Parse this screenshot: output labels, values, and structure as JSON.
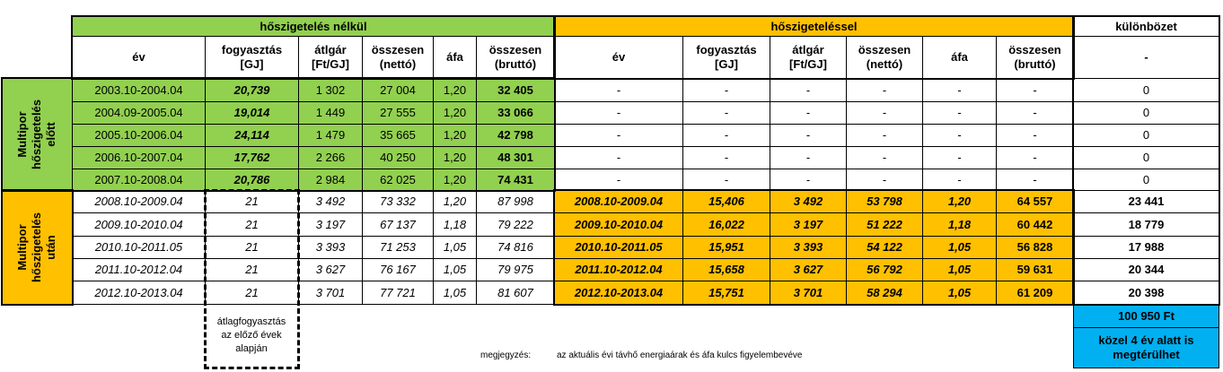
{
  "header": {
    "group_without": "hőszigetelés nélkül",
    "group_with": "hőszigeteléssel",
    "difference": "különbözet",
    "columns": [
      "év",
      "fogyasztás\n[GJ]",
      "átlgár\n[Ft/GJ]",
      "összesen\n(nettó)",
      "áfa",
      "összesen\n(bruttó)",
      "év",
      "fogyasztás\n[GJ]",
      "átlgár\n[Ft/GJ]",
      "összesen\n(nettó)",
      "áfa",
      "összesen\n(bruttó)",
      "-"
    ]
  },
  "groups": [
    {
      "label": "Multipor\nhőszigetelés előtt",
      "rows": [
        [
          "2003.10-2004.04",
          "20,739",
          "1 302",
          "27 004",
          "1,20",
          "32 405",
          "-",
          "-",
          "-",
          "-",
          "-",
          "-",
          "0"
        ],
        [
          "2004.09-2005.04",
          "19,014",
          "1 449",
          "27 555",
          "1,20",
          "33 066",
          "-",
          "-",
          "-",
          "-",
          "-",
          "-",
          "0"
        ],
        [
          "2005.10-2006.04",
          "24,114",
          "1 479",
          "35 665",
          "1,20",
          "42 798",
          "-",
          "-",
          "-",
          "-",
          "-",
          "-",
          "0"
        ],
        [
          "2006.10-2007.04",
          "17,762",
          "2 266",
          "40 250",
          "1,20",
          "48 301",
          "-",
          "-",
          "-",
          "-",
          "-",
          "-",
          "0"
        ],
        [
          "2007.10-2008.04",
          "20,786",
          "2 984",
          "62 025",
          "1,20",
          "74 431",
          "-",
          "-",
          "-",
          "-",
          "-",
          "-",
          "0"
        ]
      ]
    },
    {
      "label": "Multipor\nhőszigetelés után",
      "rows": [
        [
          "2008.10-2009.04",
          "21",
          "3 492",
          "73 332",
          "1,20",
          "87 998",
          "2008.10-2009.04",
          "15,406",
          "3 492",
          "53 798",
          "1,20",
          "64 557",
          "23 441"
        ],
        [
          "2009.10-2010.04",
          "21",
          "3 197",
          "67 137",
          "1,18",
          "79 222",
          "2009.10-2010.04",
          "16,022",
          "3 197",
          "51 222",
          "1,18",
          "60 442",
          "18 779"
        ],
        [
          "2010.10-2011.05",
          "21",
          "3 393",
          "71 253",
          "1,05",
          "74 816",
          "2010.10-2011.05",
          "15,951",
          "3 393",
          "54 122",
          "1,05",
          "56 828",
          "17 988"
        ],
        [
          "2011.10-2012.04",
          "21",
          "3 627",
          "76 167",
          "1,05",
          "79 975",
          "2011.10-2012.04",
          "15,658",
          "3 627",
          "56 792",
          "1,05",
          "59 631",
          "20 344"
        ],
        [
          "2012.10-2013.04",
          "21",
          "3 701",
          "77 721",
          "1,05",
          "81 607",
          "2012.10-2013.04",
          "15,751",
          "3 701",
          "58 294",
          "1,05",
          "61 209",
          "20 398"
        ]
      ]
    }
  ],
  "footer": {
    "avg_note": "átlagfogyasztás\naz előző évek\nalapján",
    "note_label": "megjegyzés:",
    "note": "az aktuális évi távhő energiaárak és áfa kulcs figyelembevéve",
    "total": "100 950 Ft",
    "payback": "közel 4 év alatt is\nmegtérülhet"
  }
}
